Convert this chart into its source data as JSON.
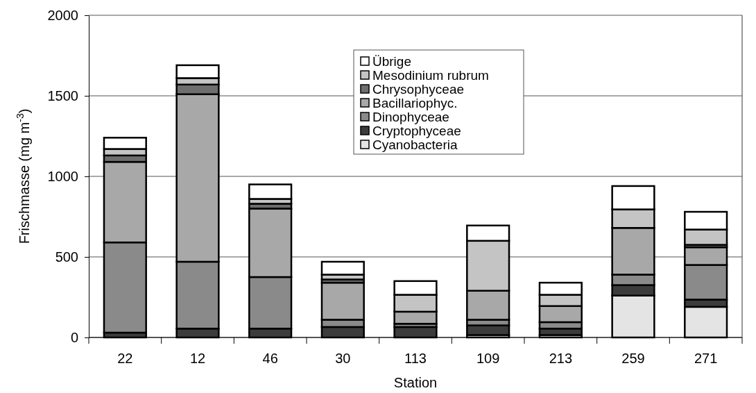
{
  "chart_data": {
    "type": "bar",
    "stacked": true,
    "xlabel": "Station",
    "ylabel": "Frischmasse (mg m$^{-3}$)",
    "categories": [
      "22",
      "12",
      "46",
      "30",
      "113",
      "109",
      "213",
      "259",
      "271"
    ],
    "ylim": [
      0,
      2000
    ],
    "yticks": [
      0,
      500,
      1000,
      1500,
      2000
    ],
    "grid": "y",
    "legend": "top",
    "series": [
      {
        "name": "Cyanobacteria",
        "color": "#e4e4e4",
        "values": [
          0,
          0,
          0,
          0,
          0,
          15,
          15,
          260,
          190
        ]
      },
      {
        "name": "Cryptophyceae",
        "color": "#3c3c3c",
        "values": [
          30,
          55,
          55,
          65,
          65,
          60,
          40,
          65,
          45
        ]
      },
      {
        "name": "Dinophyceae",
        "color": "#8a8a8a",
        "values": [
          560,
          415,
          320,
          45,
          20,
          35,
          40,
          65,
          215
        ]
      },
      {
        "name": "Bacillariophyc.",
        "color": "#a8a8a8",
        "values": [
          500,
          1040,
          425,
          230,
          75,
          180,
          100,
          290,
          110
        ]
      },
      {
        "name": "Chrysophyceae",
        "color": "#6e6e6e",
        "values": [
          40,
          60,
          30,
          20,
          0,
          0,
          0,
          0,
          15
        ]
      },
      {
        "name": "Mesodinium rubrum",
        "color": "#c4c4c4",
        "values": [
          40,
          40,
          30,
          30,
          105,
          310,
          70,
          115,
          95
        ]
      },
      {
        "name": "Übrige",
        "color": "#ffffff",
        "values": [
          70,
          80,
          90,
          80,
          85,
          95,
          75,
          145,
          110
        ]
      }
    ]
  }
}
